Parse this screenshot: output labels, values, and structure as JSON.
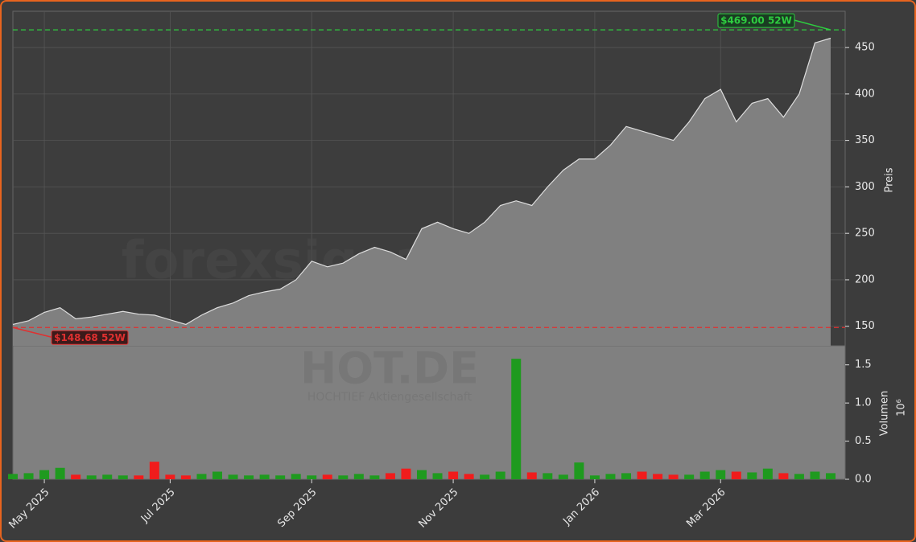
{
  "chart_data": [
    {
      "type": "area",
      "ylabel": "Preis",
      "values": [
        152,
        156,
        165,
        170,
        158,
        160,
        163,
        166,
        163,
        162,
        157,
        152,
        162,
        170,
        175,
        183,
        187,
        190,
        200,
        220,
        214,
        218,
        228,
        235,
        230,
        222,
        255,
        262,
        255,
        250,
        262,
        280,
        285,
        280,
        300,
        318,
        330,
        330,
        345,
        365,
        360,
        355,
        350,
        370,
        395,
        405,
        370,
        390,
        395,
        375,
        400,
        455,
        460
      ],
      "line_color": "#dddddd",
      "fill_color": "#808080",
      "ylim": [
        129,
        489
      ],
      "yticks": [
        150,
        200,
        250,
        300,
        350,
        400,
        450
      ],
      "grid": true,
      "annotations": [
        {
          "label": "$469.00 52W",
          "value": 469,
          "color": "#2ecc40",
          "index": 52
        },
        {
          "label": "$148.68 52W",
          "value": 148.68,
          "color": "#e03030",
          "index": 0
        }
      ],
      "watermark": "forexsignale.trade"
    },
    {
      "type": "bar",
      "ylabel": "Volumen",
      "offset_label": "10⁶",
      "categories": [
        null,
        null,
        "May 2025",
        null,
        null,
        null,
        null,
        null,
        null,
        null,
        "Jul 2025",
        null,
        null,
        null,
        null,
        null,
        null,
        null,
        null,
        "Sep 2025",
        null,
        null,
        null,
        null,
        null,
        null,
        null,
        null,
        "Nov 2025",
        null,
        null,
        null,
        null,
        null,
        null,
        null,
        null,
        "Jan 2026",
        null,
        null,
        null,
        null,
        null,
        null,
        null,
        "Mar 2026",
        null,
        null,
        null,
        null,
        null,
        null,
        null
      ],
      "values": [
        0.07,
        0.08,
        0.12,
        0.15,
        0.06,
        0.05,
        0.06,
        0.05,
        0.05,
        0.23,
        0.06,
        0.05,
        0.07,
        0.1,
        0.06,
        0.05,
        0.06,
        0.05,
        0.07,
        0.05,
        0.06,
        0.05,
        0.07,
        0.05,
        0.08,
        0.14,
        0.12,
        0.08,
        0.1,
        0.07,
        0.06,
        0.1,
        1.58,
        0.09,
        0.08,
        0.06,
        0.22,
        0.05,
        0.07,
        0.08,
        0.1,
        0.07,
        0.06,
        0.06,
        0.1,
        0.12,
        0.1,
        0.09,
        0.14,
        0.08,
        0.07,
        0.1,
        0.08
      ],
      "up_color": "#1f9a1f",
      "down_color": "#f01c1c",
      "ylim": [
        0,
        1.75
      ],
      "yticks": [
        {
          "value": 0,
          "label": "0.0"
        },
        0.5,
        {
          "value": 1,
          "label": "1.0"
        },
        1.5
      ],
      "watermark": "HOT.DE",
      "watermark_subtitle": "HOCHTIEF Aktiengesellschaft"
    }
  ]
}
